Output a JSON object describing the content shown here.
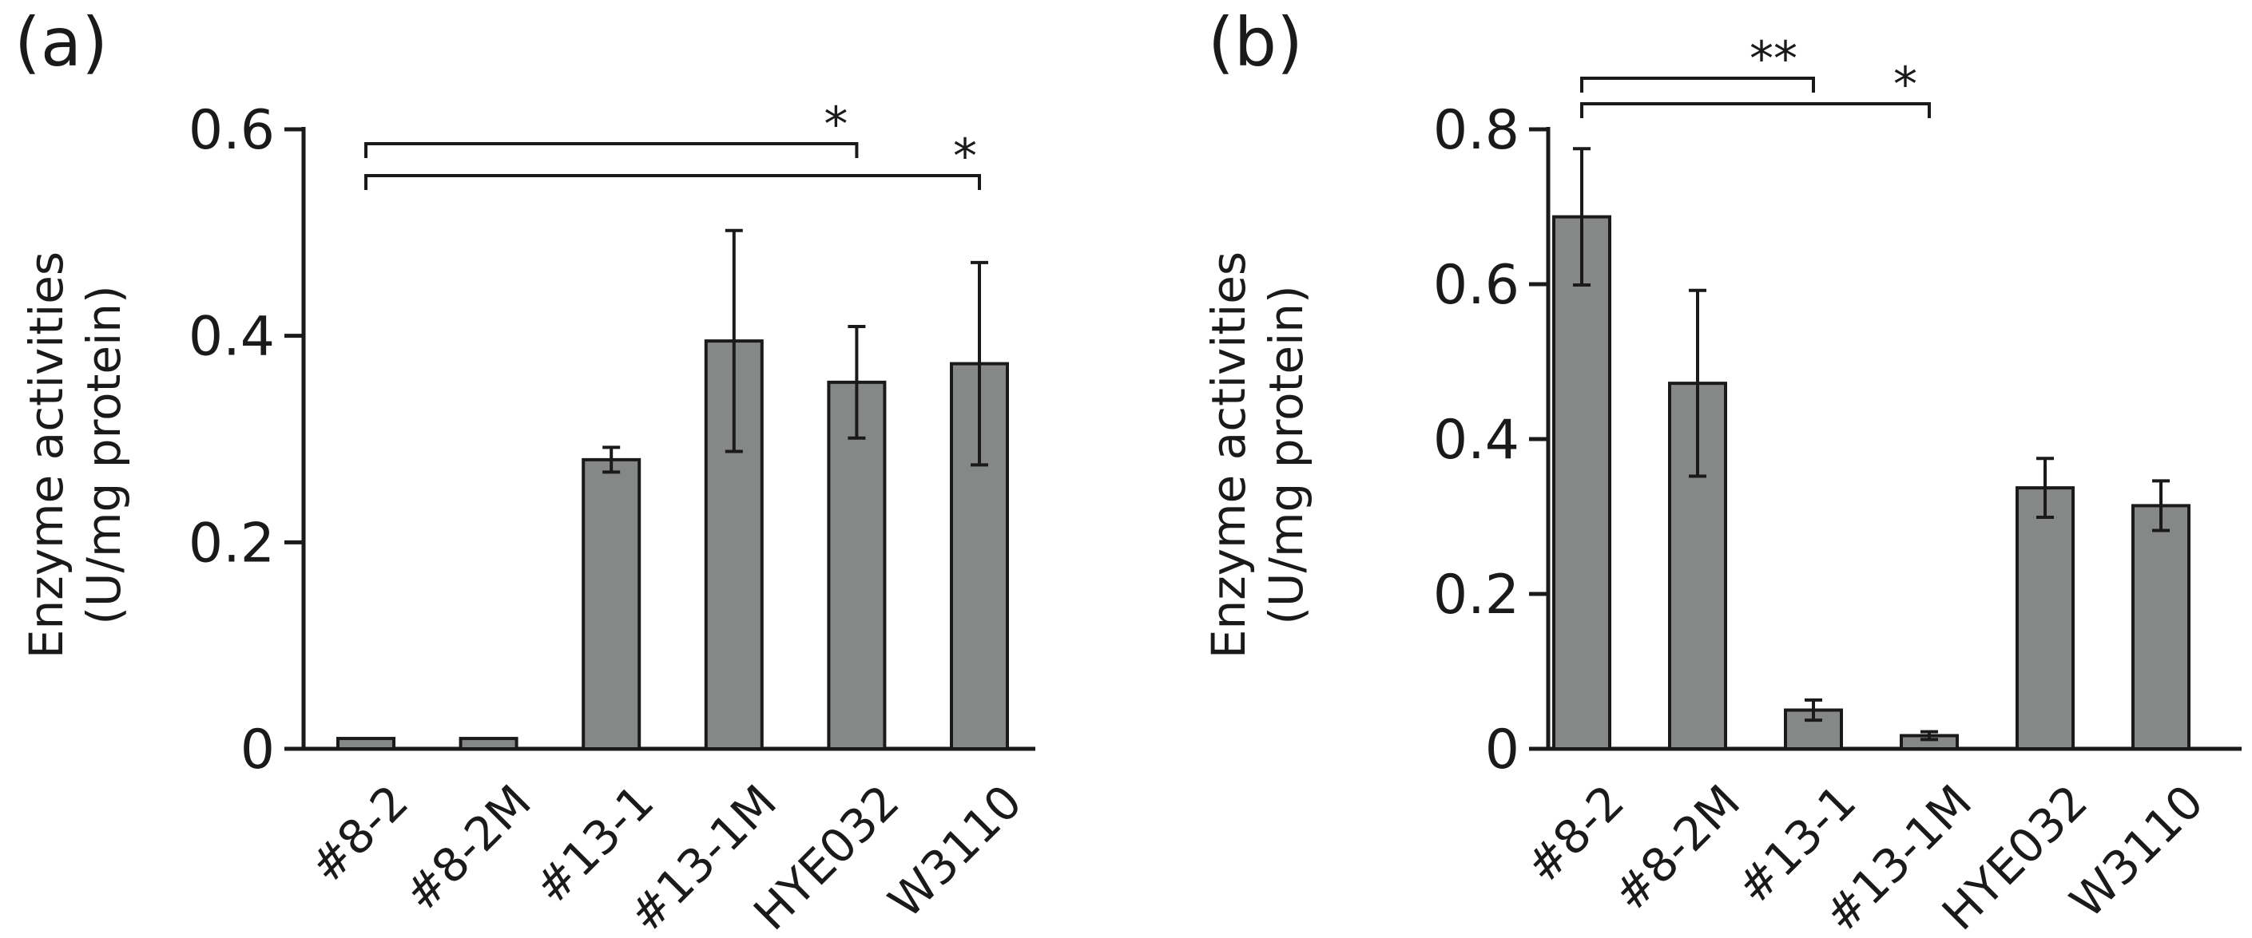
{
  "figure": {
    "colors": {
      "bar": "#868787",
      "ink": "#1a1a1a",
      "background": "#ffffff"
    }
  },
  "chart_data": [
    {
      "panel": "(a)",
      "type": "bar",
      "categories": [
        "#8-2",
        "#8-2M",
        "#13-1",
        "#13-1M",
        "HYE032",
        "W3110"
      ],
      "values": [
        0.01,
        0.01,
        0.28,
        0.395,
        0.355,
        0.373
      ],
      "errors": [
        0,
        0,
        0.012,
        0.107,
        0.054,
        0.098
      ],
      "ylim": [
        0,
        0.6
      ],
      "yticks": [
        0,
        0.2,
        0.4,
        0.6
      ],
      "ytick_labels": [
        "0",
        "0.2",
        "0.4",
        "0.6"
      ],
      "ylabel_line1": "Enzyme activities",
      "ylabel_line2": "(U/mg protein)",
      "xlabel": "",
      "significance": [
        {
          "from": "#8-2",
          "to": "HYE032",
          "label": "*"
        },
        {
          "from": "#8-2",
          "to": "W3110",
          "label": "*"
        }
      ]
    },
    {
      "panel": "(b)",
      "type": "bar",
      "categories": [
        "#8-2",
        "#8-2M",
        "#13-1",
        "#13-1M",
        "HYE032",
        "W3110"
      ],
      "values": [
        0.687,
        0.472,
        0.05,
        0.017,
        0.337,
        0.314
      ],
      "errors": [
        0.088,
        0.12,
        0.013,
        0.005,
        0.038,
        0.032
      ],
      "ylim": [
        0,
        0.8
      ],
      "yticks": [
        0,
        0.2,
        0.4,
        0.6,
        0.8
      ],
      "ytick_labels": [
        "0",
        "0.2",
        "0.4",
        "0.6",
        "0.8"
      ],
      "ylabel_line1": "Enzyme activities",
      "ylabel_line2": "(U/mg protein)",
      "xlabel": "",
      "significance": [
        {
          "from": "#8-2",
          "to": "#13-1",
          "label": "**"
        },
        {
          "from": "#8-2",
          "to": "#13-1M",
          "label": "*"
        }
      ]
    }
  ]
}
